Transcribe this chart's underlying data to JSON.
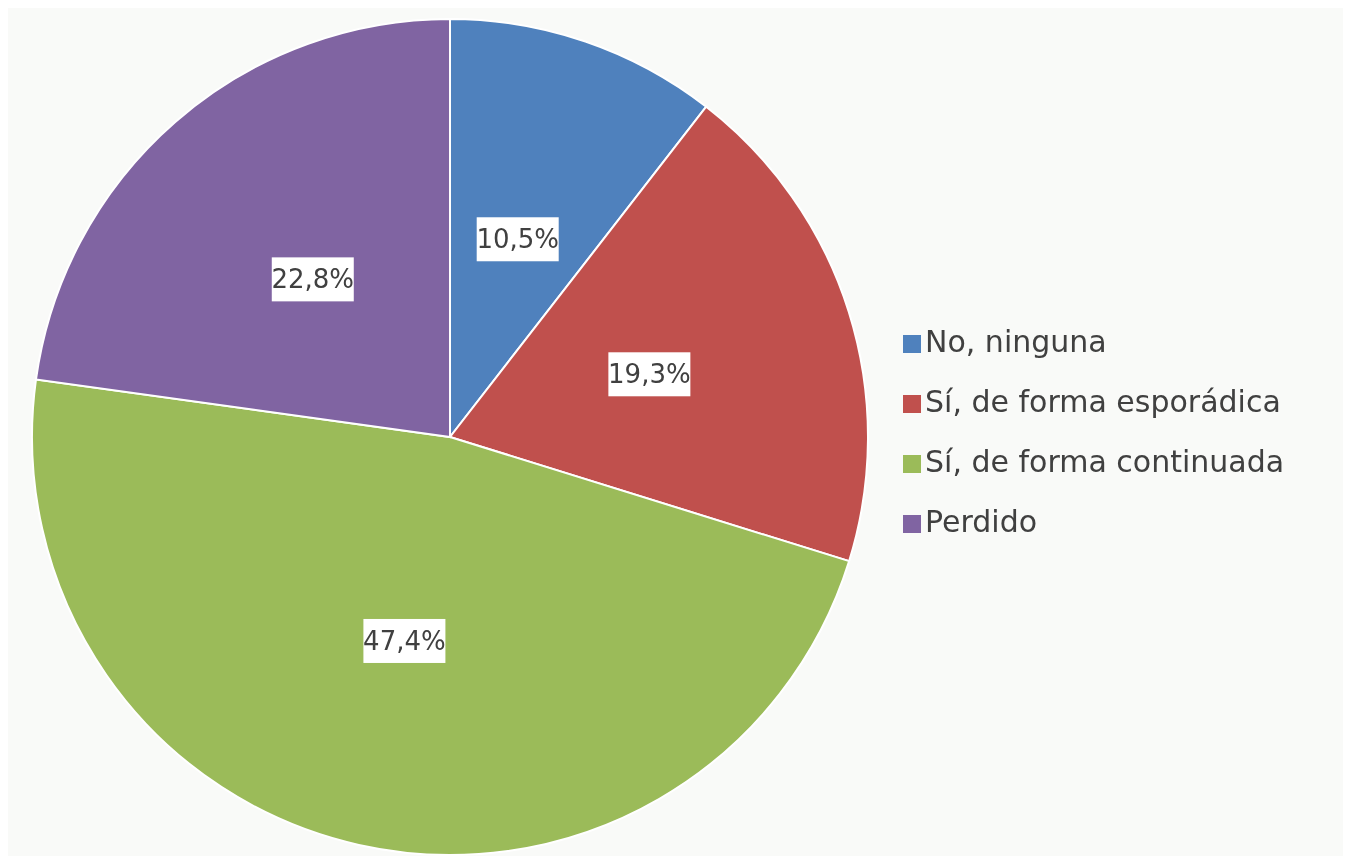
{
  "chart_data": {
    "type": "pie",
    "categories": [
      "No, ninguna",
      "Sí, de forma esporádica",
      "Sí, de forma continuada",
      "Perdido"
    ],
    "values": [
      10.5,
      19.3,
      47.4,
      22.8
    ],
    "colors": [
      "#4f81bd",
      "#c0504d",
      "#9bbb59",
      "#8064a2"
    ],
    "value_labels": [
      "10,5%",
      "19,3%",
      "47,4%",
      "22,8%"
    ],
    "legend": "right"
  }
}
